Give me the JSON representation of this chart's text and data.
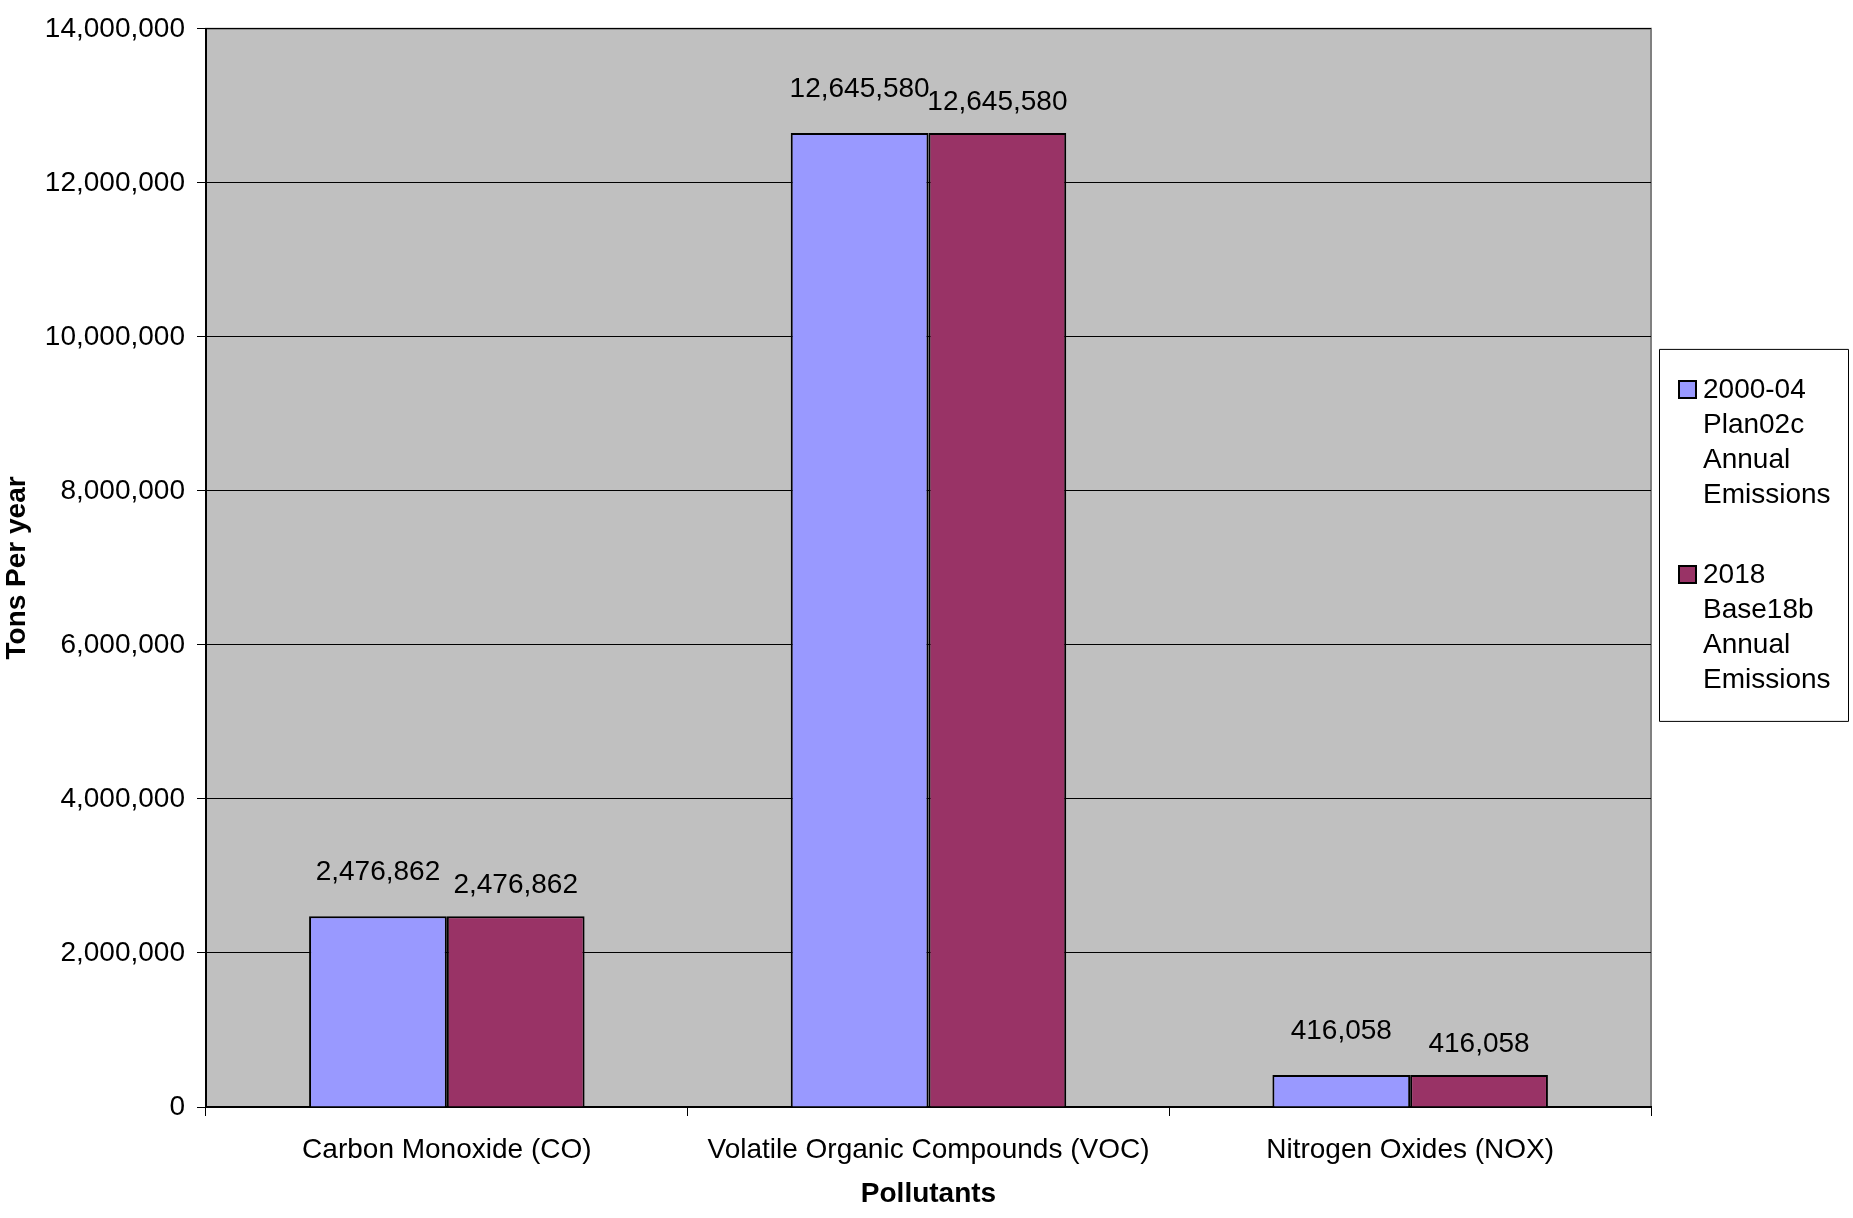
{
  "chart_data": {
    "type": "bar",
    "xlabel": "Pollutants",
    "ylabel": "Tons Per year",
    "categories": [
      "Carbon Monoxide (CO)",
      "Volatile Organic Compounds (VOC)",
      "Nitrogen Oxides (NOX)"
    ],
    "series": [
      {
        "name": "2000-04 Plan02c Annual Emissions",
        "color": "#9999ff",
        "values": [
          2476862,
          12645580,
          416058
        ],
        "value_labels": [
          "2,476,862",
          "12,645,580",
          "416,058"
        ]
      },
      {
        "name": "2018 Base18b Annual Emissions",
        "color": "#993366",
        "values": [
          2476862,
          12645580,
          416058
        ],
        "value_labels": [
          "2,476,862",
          "12,645,580",
          "416,058"
        ]
      }
    ],
    "ylim": [
      0,
      14000000
    ],
    "yticks": [
      0,
      {
        "value": 2000000,
        "label": "2,000,000"
      },
      {
        "value": 4000000,
        "label": "4,000,000"
      },
      {
        "value": 6000000,
        "label": "6,000,000"
      },
      {
        "value": 8000000,
        "label": "8,000,000"
      },
      {
        "value": 10000000,
        "label": "10,000,000"
      },
      {
        "value": 12000000,
        "label": "12,000,000"
      },
      {
        "value": 14000000,
        "label": "14,000,000"
      }
    ],
    "grid": "y",
    "legend": "right"
  }
}
